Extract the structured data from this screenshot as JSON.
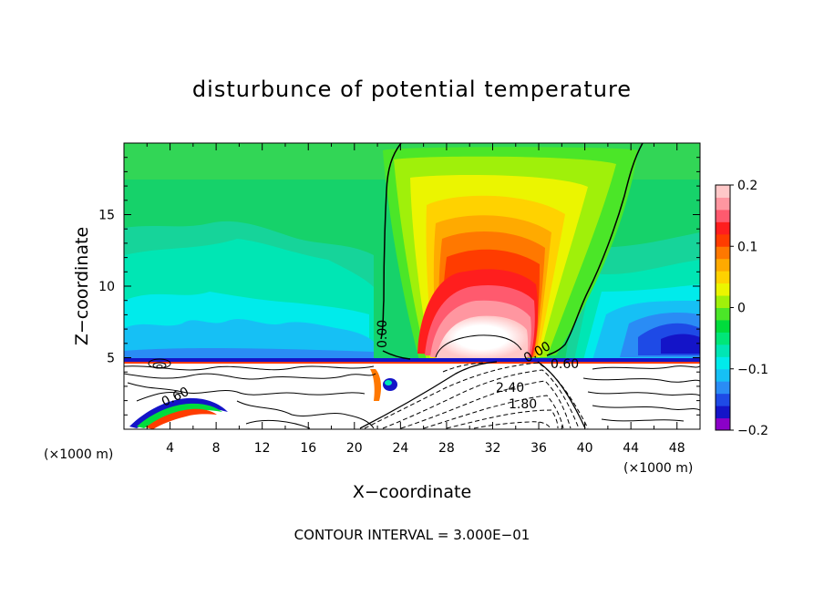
{
  "chart_data": {
    "type": "heatmap",
    "title": "disturbunce of potential temperature",
    "xlabel": "X−coordinate",
    "ylabel": "Z−coordinate",
    "x_unit": "(×1000 m)",
    "y_unit": "(×1000 m)",
    "xlim": [
      0,
      50
    ],
    "ylim": [
      0,
      20
    ],
    "x_ticks": [
      4,
      8,
      12,
      16,
      20,
      24,
      28,
      32,
      36,
      40,
      44,
      48
    ],
    "y_ticks": [
      5,
      10,
      15
    ],
    "colorbar": {
      "range": [
        -0.2,
        0.2
      ],
      "tick_values": [
        0.2,
        0.1,
        0,
        -0.1,
        -0.2
      ],
      "tick_labels": [
        "0.2",
        "0.1",
        "0",
        "−0.1",
        "−0.2"
      ],
      "colors": [
        "#8b00c8",
        "#1414c8",
        "#1e4ae6",
        "#2a8cf5",
        "#16c0f5",
        "#00ebeb",
        "#00e6b4",
        "#00e678",
        "#00dc3c",
        "#4be628",
        "#a0f00a",
        "#ebf500",
        "#ffd200",
        "#ffaa00",
        "#ff7800",
        "#ff3c00",
        "#ff1e1e",
        "#ff5a6e",
        "#ff96a0",
        "#ffc8c8"
      ]
    },
    "contour_interval_label": "CONTOUR INTERVAL = 3.000E−01",
    "contour_labels": [
      "0.00",
      "0.00",
      "0.60",
      "0.60",
      "2.40",
      "1.80"
    ]
  }
}
